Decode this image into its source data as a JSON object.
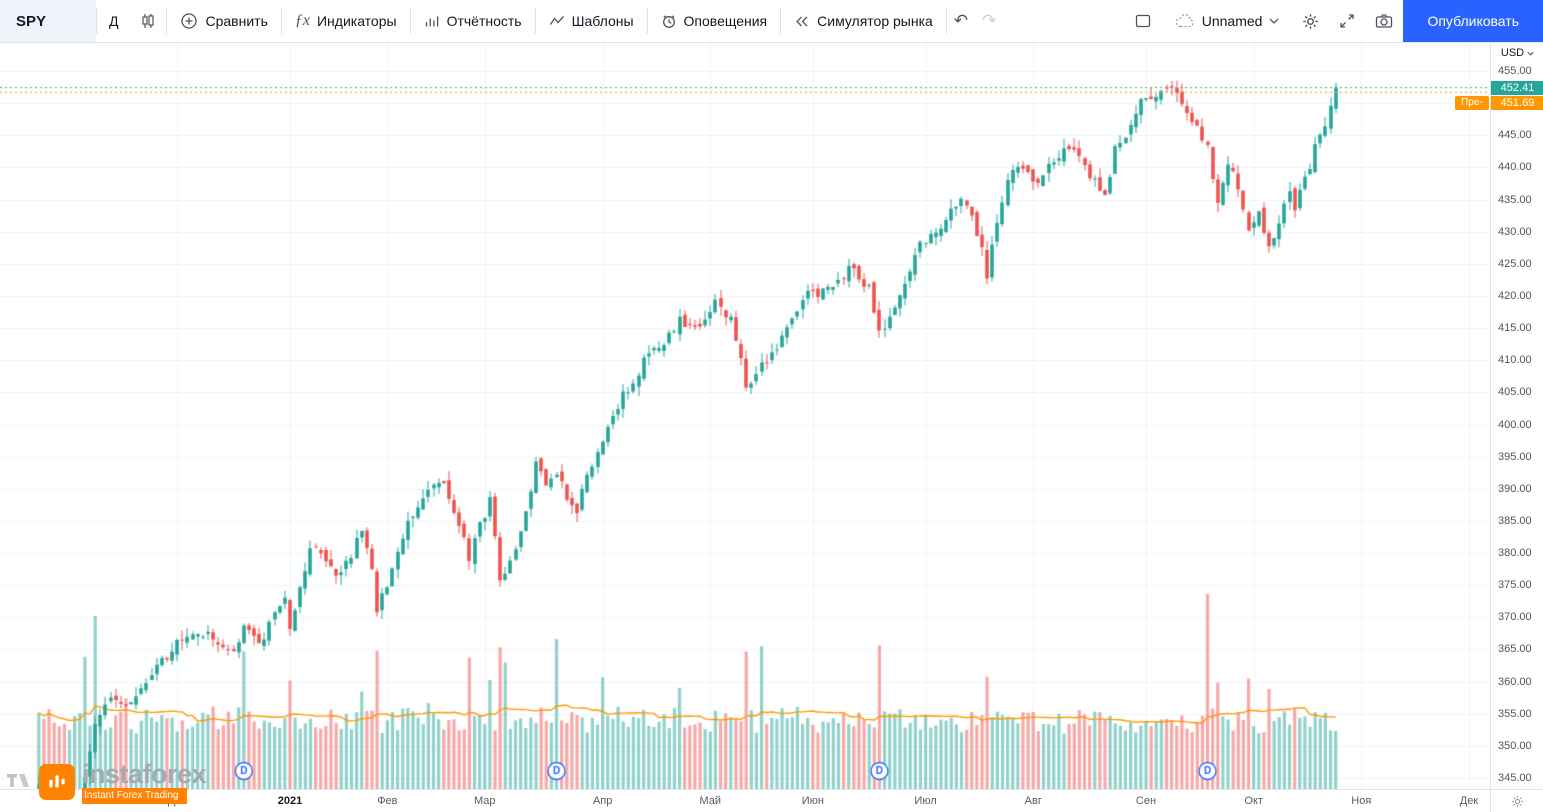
{
  "toolbar": {
    "symbol": "SPY",
    "interval": "Д",
    "compare": "Сравнить",
    "indicators": "Индикаторы",
    "earnings": "Отчётность",
    "templates": "Шаблоны",
    "alerts": "Оповещения",
    "replay": "Симулятор рынка",
    "layout_name": "Unnamed",
    "publish": "Опубликовать"
  },
  "icons": {
    "fx_glyph": "ƒx",
    "undo_glyph": "↶",
    "redo_glyph": "↷"
  },
  "price_axis": {
    "currency": "USD",
    "ticks": [
      "455.00",
      "450.00",
      "445.00",
      "440.00",
      "435.00",
      "430.00",
      "425.00",
      "420.00",
      "415.00",
      "410.00",
      "405.00",
      "400.00",
      "395.00",
      "390.00",
      "385.00",
      "380.00",
      "375.00",
      "370.00",
      "365.00",
      "360.00",
      "355.00",
      "350.00",
      "345.00"
    ],
    "last_price": "452.41",
    "premarket_price": "451.69",
    "premarket_tag": "Пре-"
  },
  "watermark": {
    "brand": "instaforex",
    "tagline": "Instant Forex Trading"
  },
  "brand_colors": {
    "publish_blue": "#2962ff",
    "instaforex_orange": "#ff8300",
    "brand_gray": "#a6a9b1"
  },
  "chart_data": {
    "type": "candlestick",
    "symbol": "SPY",
    "interval": "D",
    "currency": "USD",
    "axis": {
      "price_max_tick": 455,
      "price_min_tick": 345,
      "tick_step": 5
    },
    "time_axis_months": [
      {
        "label": "Дек",
        "i": 0
      },
      {
        "label": "2021",
        "i": 22
      },
      {
        "label": "Фев",
        "i": 41
      },
      {
        "label": "Мар",
        "i": 60
      },
      {
        "label": "Апр",
        "i": 83
      },
      {
        "label": "Май",
        "i": 104
      },
      {
        "label": "Июн",
        "i": 124
      },
      {
        "label": "Июл",
        "i": 146
      },
      {
        "label": "Авг",
        "i": 167
      },
      {
        "label": "Сен",
        "i": 189
      },
      {
        "label": "Окт",
        "i": 210
      },
      {
        "label": "Ноя",
        "i": 231
      },
      {
        "label": "Дек",
        "i": 252
      }
    ],
    "dividends": {
      "marker_label": "D",
      "indices": [
        13,
        74,
        137,
        201
      ]
    },
    "i_start": -27,
    "i_end": 226,
    "last_close": 452.41,
    "premarket": 451.69,
    "price_anchors": [
      [
        -27,
        344
      ],
      [
        -25,
        335
      ],
      [
        -22,
        327
      ],
      [
        -20,
        333
      ],
      [
        -18,
        345
      ],
      [
        -16,
        354
      ],
      [
        -13,
        358
      ],
      [
        -10,
        356
      ],
      [
        -6,
        360
      ],
      [
        -3,
        363
      ],
      [
        0,
        366
      ],
      [
        4,
        368
      ],
      [
        8,
        366
      ],
      [
        11,
        364
      ],
      [
        13,
        369
      ],
      [
        16,
        366
      ],
      [
        19,
        370
      ],
      [
        21,
        373
      ],
      [
        22,
        369
      ],
      [
        24,
        374
      ],
      [
        26,
        381
      ],
      [
        29,
        379
      ],
      [
        31,
        376
      ],
      [
        34,
        380
      ],
      [
        36,
        384
      ],
      [
        38,
        377
      ],
      [
        39,
        371
      ],
      [
        41,
        375
      ],
      [
        44,
        383
      ],
      [
        47,
        387
      ],
      [
        49,
        390
      ],
      [
        52,
        391
      ],
      [
        54,
        387
      ],
      [
        56,
        382
      ],
      [
        57,
        379
      ],
      [
        59,
        384
      ],
      [
        61,
        388
      ],
      [
        63,
        376
      ],
      [
        65,
        379
      ],
      [
        67,
        383
      ],
      [
        70,
        394
      ],
      [
        72,
        390
      ],
      [
        74,
        392
      ],
      [
        76,
        389
      ],
      [
        78,
        387
      ],
      [
        80,
        392
      ],
      [
        82,
        396
      ],
      [
        84,
        400
      ],
      [
        86,
        403
      ],
      [
        89,
        407
      ],
      [
        92,
        411
      ],
      [
        95,
        413
      ],
      [
        98,
        416
      ],
      [
        101,
        415
      ],
      [
        103,
        417
      ],
      [
        105,
        419
      ],
      [
        108,
        416
      ],
      [
        110,
        410
      ],
      [
        111,
        406
      ],
      [
        113,
        408
      ],
      [
        116,
        411
      ],
      [
        119,
        415
      ],
      [
        123,
        420
      ],
      [
        125,
        420
      ],
      [
        128,
        422
      ],
      [
        131,
        424
      ],
      [
        133,
        423
      ],
      [
        135,
        421
      ],
      [
        137,
        414
      ],
      [
        139,
        416
      ],
      [
        141,
        420
      ],
      [
        143,
        424
      ],
      [
        145,
        428
      ],
      [
        147,
        429
      ],
      [
        149,
        431
      ],
      [
        151,
        434
      ],
      [
        153,
        435
      ],
      [
        155,
        432
      ],
      [
        157,
        428
      ],
      [
        158,
        423
      ],
      [
        160,
        432
      ],
      [
        162,
        438
      ],
      [
        164,
        440
      ],
      [
        166,
        439
      ],
      [
        168,
        438
      ],
      [
        170,
        440
      ],
      [
        172,
        442
      ],
      [
        174,
        443
      ],
      [
        176,
        441
      ],
      [
        178,
        439
      ],
      [
        180,
        437
      ],
      [
        181,
        435
      ],
      [
        183,
        443
      ],
      [
        185,
        445
      ],
      [
        187,
        448
      ],
      [
        188,
        450
      ],
      [
        190,
        451
      ],
      [
        193,
        453
      ],
      [
        195,
        451
      ],
      [
        197,
        448
      ],
      [
        199,
        446
      ],
      [
        201,
        443
      ],
      [
        203,
        434
      ],
      [
        205,
        441
      ],
      [
        207,
        437
      ],
      [
        209,
        430
      ],
      [
        211,
        433
      ],
      [
        213,
        427
      ],
      [
        215,
        432
      ],
      [
        217,
        437
      ],
      [
        218,
        434
      ],
      [
        220,
        438
      ],
      [
        222,
        443
      ],
      [
        224,
        447
      ],
      [
        226,
        452.41
      ]
    ],
    "volume_spikes": [
      [
        -18,
        1.8
      ],
      [
        -16,
        2.4
      ],
      [
        -10,
        1.6
      ],
      [
        13,
        2.0
      ],
      [
        22,
        1.5
      ],
      [
        36,
        1.6
      ],
      [
        39,
        1.9
      ],
      [
        49,
        1.4
      ],
      [
        57,
        1.7
      ],
      [
        61,
        1.8
      ],
      [
        63,
        2.0
      ],
      [
        64,
        2.2
      ],
      [
        74,
        2.3
      ],
      [
        83,
        1.5
      ],
      [
        98,
        1.3
      ],
      [
        111,
        2.1
      ],
      [
        114,
        1.8
      ],
      [
        130,
        1.3
      ],
      [
        137,
        2.4
      ],
      [
        158,
        1.6
      ],
      [
        176,
        1.2
      ],
      [
        201,
        2.7
      ],
      [
        203,
        1.9
      ],
      [
        209,
        1.5
      ],
      [
        213,
        1.8
      ],
      [
        216,
        1.4
      ]
    ],
    "colors": {
      "up": "#26a69a",
      "down": "#ef5350",
      "vol_up": "rgba(38,166,154,0.5)",
      "vol_down": "rgba(239,83,80,0.5)",
      "volume_ma": "#ff9800",
      "last_price_badge": "#26a69a",
      "premarket_badge": "#ff9800",
      "dividend_blue": "#2962ff",
      "grid": "#f0f3fa"
    }
  }
}
